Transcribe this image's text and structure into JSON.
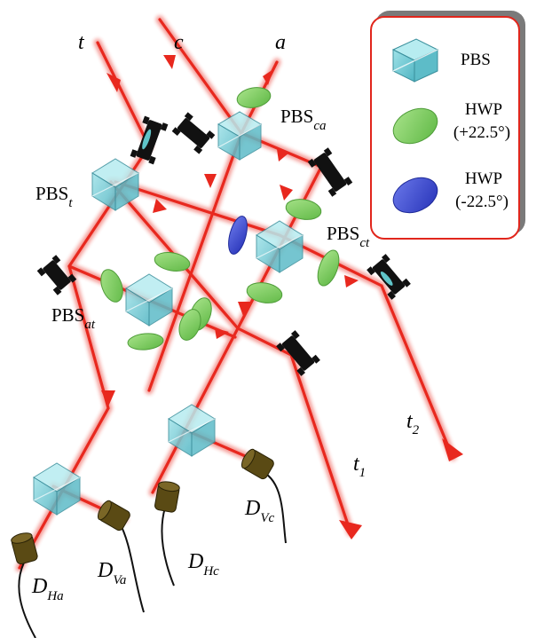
{
  "beams": {
    "t": "t",
    "c": "c",
    "a": "a",
    "t1": "t",
    "t1_sub": "1",
    "t2": "t",
    "t2_sub": "2"
  },
  "components": {
    "pbs_ca": {
      "main": "PBS",
      "sub": "ca"
    },
    "pbs_t": {
      "main": "PBS",
      "sub": "t"
    },
    "pbs_ct": {
      "main": "PBS",
      "sub": "ct"
    },
    "pbs_at": {
      "main": "PBS",
      "sub": "at"
    }
  },
  "detectors": {
    "d_ha": {
      "main": "D",
      "sub": "Ha"
    },
    "d_va": {
      "main": "D",
      "sub": "Va"
    },
    "d_hc": {
      "main": "D",
      "sub": "Hc"
    },
    "d_vc": {
      "main": "D",
      "sub": "Vc"
    }
  },
  "legend": {
    "pbs": "PBS",
    "hwp_plus_line1": "HWP",
    "hwp_plus_line2": "(+22.5°)",
    "hwp_minus_line1": "HWP",
    "hwp_minus_line2": "(-22.5°)"
  },
  "colors": {
    "beam": "#e8281e",
    "pbs": "#6cc9d3",
    "hwp_plus": "#7ccf5a",
    "hwp_minus": "#3a4ad0",
    "legend_border": "#e1261c",
    "detector": "#5a4a14"
  }
}
